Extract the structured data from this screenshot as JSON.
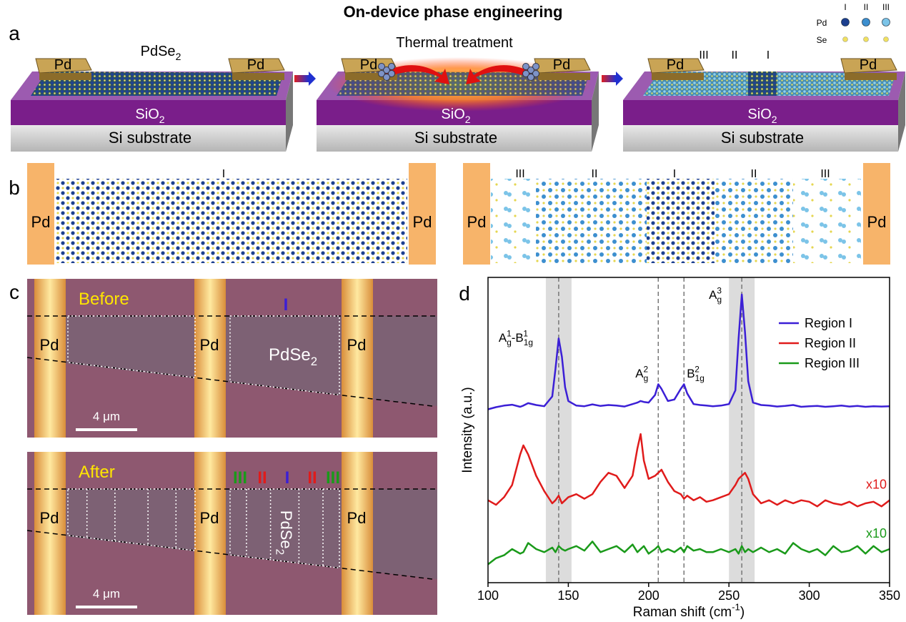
{
  "title": "On-device phase engineering",
  "panel_a": {
    "label": "a",
    "legend": {
      "phases": [
        "I",
        "II",
        "III"
      ],
      "atoms": [
        "Pd",
        "Se"
      ]
    },
    "devices": [
      {
        "pads": [
          "Pd",
          "Pd"
        ],
        "film": {
          "base": "PdSe",
          "sub": "2"
        },
        "oxide": {
          "base": "SiO",
          "sub": "2"
        },
        "substrate": "Si substrate"
      },
      {
        "pads": [
          "Pd",
          "Pd"
        ],
        "annotation": "Thermal treatment",
        "oxide": {
          "base": "SiO",
          "sub": "2"
        },
        "substrate": "Si substrate"
      },
      {
        "pads": [
          "Pd",
          "Pd"
        ],
        "regions": [
          "III",
          "II",
          "I"
        ],
        "oxide": {
          "base": "SiO",
          "sub": "2"
        },
        "substrate": "Si substrate"
      }
    ]
  },
  "panel_b": {
    "label": "b",
    "left": {
      "pads": [
        "Pd",
        "Pd"
      ],
      "regions": [
        "I"
      ]
    },
    "right": {
      "pads": [
        "Pd",
        "Pd"
      ],
      "regions": [
        "III",
        "II",
        "I",
        "II",
        "III"
      ]
    }
  },
  "panel_c": {
    "label": "c",
    "images": [
      {
        "caption": "Before",
        "pads": [
          "Pd",
          "Pd",
          "Pd"
        ],
        "film": {
          "base": "PdSe",
          "sub": "2"
        },
        "markers": [
          "I"
        ],
        "scale_bar": "4 μm"
      },
      {
        "caption": "After",
        "pads": [
          "Pd",
          "Pd",
          "Pd"
        ],
        "film": {
          "base": "PdSe",
          "sub": "2"
        },
        "markers": [
          "III",
          "II",
          "I",
          "II",
          "III"
        ],
        "scale_bar": "4 μm"
      }
    ]
  },
  "chart_data": {
    "type": "line",
    "panel_label": "d",
    "xlabel": {
      "base": "Raman shift (cm",
      "sup": "-1",
      "tail": ")"
    },
    "ylabel": "Intensity (a.u.)",
    "xlim": [
      100,
      350
    ],
    "xticks": [
      100,
      150,
      200,
      250,
      300,
      350
    ],
    "ylim": [
      0,
      100
    ],
    "grid": false,
    "legend": "upper right",
    "bands": [
      [
        136,
        152
      ],
      [
        250,
        266
      ]
    ],
    "reference_lines": [
      144,
      206,
      222,
      258
    ],
    "peaks": [
      {
        "x": 144,
        "parts": [
          {
            "base": "A",
            "sub": "g",
            "sup": "1"
          },
          {
            "base": "-B",
            "sub": "1g",
            "sup": "1"
          }
        ]
      },
      {
        "x": 206,
        "parts": [
          {
            "base": "A",
            "sub": "g",
            "sup": "2"
          }
        ]
      },
      {
        "x": 222,
        "parts": [
          {
            "base": "B",
            "sub": "1g",
            "sup": "2"
          }
        ]
      },
      {
        "x": 258,
        "parts": [
          {
            "base": "A",
            "sub": "g",
            "sup": "3"
          }
        ]
      }
    ],
    "x": [
      100,
      105,
      110,
      115,
      120,
      122,
      125,
      130,
      135,
      140,
      142,
      144,
      146,
      148,
      150,
      155,
      160,
      165,
      170,
      175,
      180,
      185,
      190,
      193,
      195,
      197,
      200,
      204,
      206,
      208,
      212,
      216,
      220,
      222,
      224,
      228,
      232,
      236,
      240,
      245,
      250,
      254,
      256,
      258,
      260,
      262,
      265,
      270,
      275,
      280,
      285,
      290,
      295,
      300,
      305,
      310,
      315,
      320,
      325,
      330,
      335,
      340,
      345,
      350
    ],
    "series": [
      {
        "name": "Region I",
        "color": "#3b1fd6",
        "values": [
          56.8,
          57.5,
          58.0,
          58.3,
          57.6,
          58.0,
          58.8,
          58.2,
          57.8,
          61,
          70,
          80,
          74,
          64,
          59.5,
          58.0,
          57.8,
          58.4,
          57.9,
          58.2,
          58.0,
          57.7,
          58.5,
          59.0,
          59.5,
          59.2,
          59.0,
          61.5,
          65,
          63.5,
          59.5,
          60,
          63.5,
          65,
          62,
          58.5,
          58.2,
          58.0,
          57.8,
          58.0,
          58.5,
          63,
          80,
          94.4,
          82,
          66,
          59,
          58.2,
          58.0,
          57.7,
          57.9,
          58.2,
          57.6,
          57.8,
          57.9,
          57.6,
          57.8,
          58.0,
          57.7,
          57.9,
          57.6,
          57.8,
          57.7,
          57.8
        ]
      },
      {
        "name": "Region II",
        "color": "#e01b1b",
        "scale_label": "x10",
        "values": [
          27,
          25.5,
          28,
          32,
          42,
          45,
          42,
          35,
          30,
          26,
          27,
          28.5,
          26,
          27,
          28,
          29,
          27.5,
          29,
          33,
          36,
          35,
          31,
          35,
          44,
          48.7,
          40,
          34,
          35,
          36,
          37,
          33,
          30,
          29,
          27.5,
          28.5,
          27,
          28,
          26.5,
          27,
          28,
          29,
          32,
          34,
          35,
          36,
          34,
          29,
          26,
          27,
          25.5,
          27,
          26,
          27,
          26.5,
          25,
          27,
          26,
          25.5,
          26.5,
          25,
          26,
          26.5,
          25,
          27
        ]
      },
      {
        "name": "Region III",
        "color": "#1a9a1a",
        "scale_label": "x10",
        "values": [
          6,
          8,
          9,
          11,
          9.5,
          10,
          13,
          11,
          10,
          11.5,
          10,
          12,
          11,
          10.5,
          11,
          12,
          10.5,
          13.5,
          10,
          11,
          12,
          10,
          12.5,
          10,
          11,
          12,
          9.5,
          11,
          12,
          10,
          11,
          10,
          11.5,
          10,
          12,
          10.5,
          11,
          10,
          10,
          11,
          10,
          11,
          9.5,
          12,
          10,
          11,
          10,
          11.5,
          10,
          11,
          9.5,
          13,
          11,
          10,
          11,
          9,
          12,
          10,
          10.5,
          12,
          9.5,
          12,
          10,
          11
        ]
      }
    ]
  }
}
